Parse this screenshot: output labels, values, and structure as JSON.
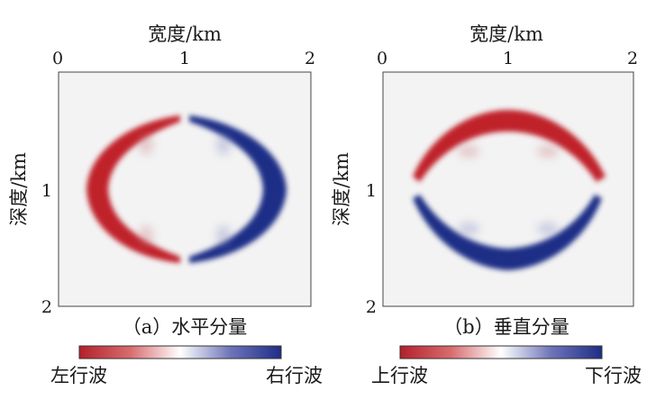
{
  "panels": [
    {
      "id": "a",
      "caption": "（a）水平分量",
      "xlabel": "宽度/km",
      "ylabel": "深度/km",
      "x_ticks": [
        "0",
        "1",
        "2"
      ],
      "y_ticks": [
        "1",
        "2"
      ],
      "colorbar": {
        "left_label": "左行波",
        "right_label": "右行波"
      }
    },
    {
      "id": "b",
      "caption": "（b）垂直分量",
      "xlabel": "宽度/km",
      "ylabel": "深度/km",
      "x_ticks": [
        "0",
        "1",
        "2"
      ],
      "y_ticks": [
        "1",
        "2"
      ],
      "colorbar": {
        "left_label": "上行波",
        "right_label": "下行波"
      }
    }
  ],
  "colors": {
    "red": "#c0242b",
    "blue": "#1f2d86",
    "white": "#ffffff",
    "frame_bg": "#f3f3f3"
  }
}
